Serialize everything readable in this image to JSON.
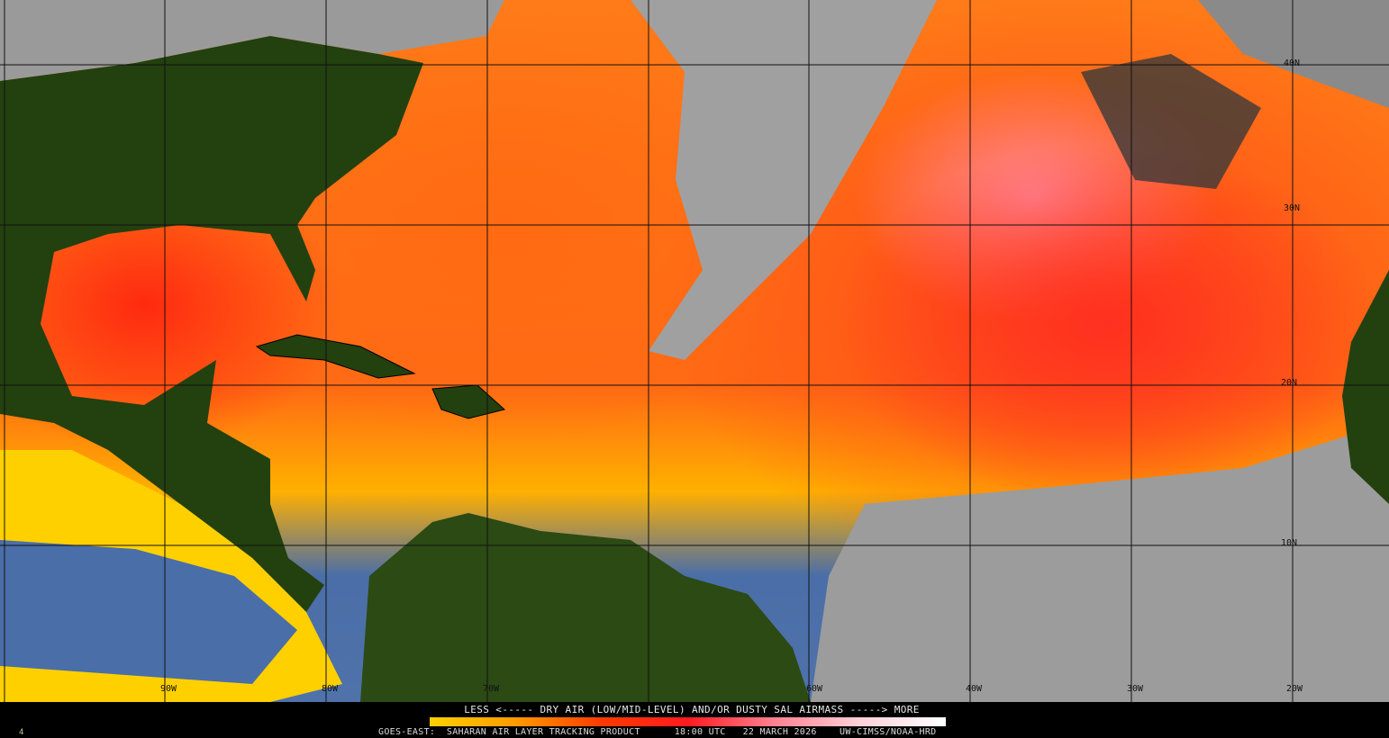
{
  "product": {
    "legend_title": "LESS <----- DRY AIR (LOW/MID-LEVEL) AND/OR DUSTY SAL AIRMASS -----> MORE",
    "satellite": "GOES-EAST:",
    "product_name": "SAHARAN AIR LAYER TRACKING PRODUCT",
    "time": "18:00 UTC",
    "date": "22 MARCH 2026",
    "credit": "UW-CIMSS/NOAA-HRD",
    "corner_mark": "4"
  },
  "colorbar": {
    "colors": [
      "#ffd000",
      "#ff9a00",
      "#ff3a00",
      "#ff1a20",
      "#ff8090",
      "#ffd0d8",
      "#ffffff"
    ],
    "low_label": "LESS",
    "high_label": "MORE"
  },
  "grid": {
    "longitude_labels": [
      "90W",
      "80W",
      "70W",
      "60W",
      "40W",
      "30W",
      "20W"
    ],
    "latitude_labels": [
      "40N",
      "30N",
      "20N",
      "10N"
    ]
  },
  "colors": {
    "land": "#23400f",
    "clear_ocean": "#4a6ea8",
    "clouds": "#a8a8a8",
    "sal_high": "#ff2a10"
  }
}
